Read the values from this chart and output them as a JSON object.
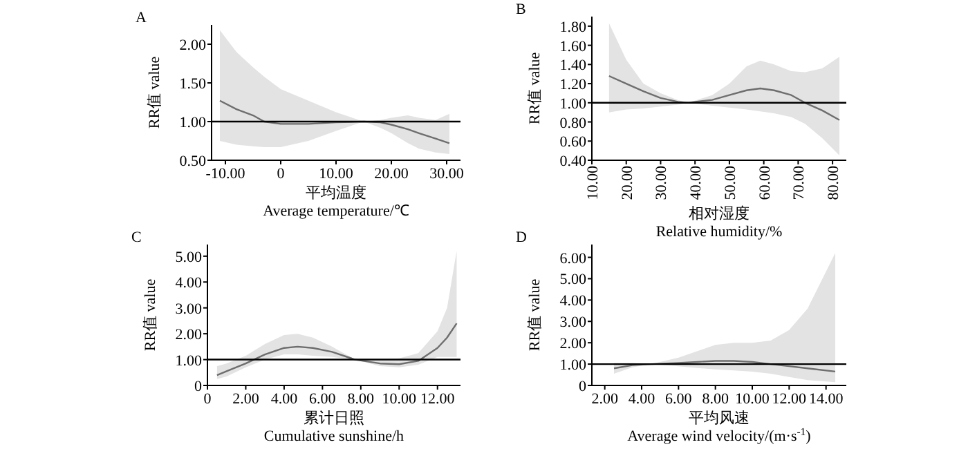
{
  "chart_data": [
    {
      "type": "line",
      "title": "A",
      "xlabel": "平均温度\nAverage temperature/℃",
      "ylabel": "RR值 value",
      "xlim": [
        -12.5,
        32.5
      ],
      "ylim": [
        0.5,
        2.25
      ],
      "xticks": [
        {
          "value": -10,
          "label": "-10.00"
        },
        0,
        {
          "value": 10,
          "label": "10.00"
        },
        {
          "value": 20,
          "label": "20.00"
        },
        {
          "value": 30,
          "label": "30.00"
        }
      ],
      "yticks": [
        {
          "value": 0.5,
          "label": "0.50"
        },
        {
          "value": 1,
          "label": "1.00"
        },
        {
          "value": 1.5,
          "label": "1.50"
        },
        {
          "value": 2,
          "label": "2.00"
        }
      ],
      "ref_lines": [
        {
          "axis": "y",
          "value": 1,
          "color": "#000000"
        }
      ],
      "series": [
        {
          "color": "#6e6e6e",
          "x": [
            -11,
            -8,
            -5,
            -3,
            0,
            5,
            10,
            15,
            18,
            20,
            23,
            25,
            28,
            30.5
          ],
          "values": [
            1.27,
            1.16,
            1.08,
            1.0,
            0.97,
            0.97,
            0.99,
            1.0,
            0.99,
            0.96,
            0.9,
            0.85,
            0.78,
            0.72
          ],
          "lower": [
            0.75,
            0.7,
            0.68,
            0.67,
            0.67,
            0.75,
            0.88,
            1.0,
            0.92,
            0.85,
            0.72,
            0.65,
            0.6,
            0.58
          ],
          "upper": [
            2.18,
            1.9,
            1.7,
            1.58,
            1.42,
            1.27,
            1.12,
            1.0,
            1.02,
            1.05,
            1.08,
            1.05,
            1.02,
            1.1
          ]
        }
      ]
    },
    {
      "type": "line",
      "title": "B",
      "xlabel": "相对湿度\nRelative humidity/%",
      "ylabel": "RR值 value",
      "xlim": [
        10,
        84
      ],
      "ylim": [
        0.4,
        1.9
      ],
      "xticks": [
        {
          "value": 10,
          "label": "10.00"
        },
        {
          "value": 20,
          "label": "20.00"
        },
        {
          "value": 30,
          "label": "30.00"
        },
        {
          "value": 40,
          "label": "40.00"
        },
        {
          "value": 50,
          "label": "50.00"
        },
        {
          "value": 60,
          "label": "60.00"
        },
        {
          "value": 70,
          "label": "70.00"
        },
        {
          "value": 80,
          "label": "80.00"
        }
      ],
      "yticks": [
        {
          "value": 0.4,
          "label": "0.40"
        },
        {
          "value": 0.6,
          "label": "0.60"
        },
        {
          "value": 0.8,
          "label": "0.80"
        },
        {
          "value": 1,
          "label": "1.00"
        },
        {
          "value": 1.2,
          "label": "1.20"
        },
        {
          "value": 1.4,
          "label": "1.40"
        },
        {
          "value": 1.6,
          "label": "1.60"
        },
        {
          "value": 1.8,
          "label": "1.80"
        }
      ],
      "ref_lines": [
        {
          "axis": "y",
          "value": 1,
          "color": "#000000"
        }
      ],
      "series": [
        {
          "color": "#6e6e6e",
          "x": [
            15,
            20,
            25,
            30,
            35,
            38,
            45,
            50,
            55,
            59,
            63,
            68,
            72,
            77,
            82
          ],
          "values": [
            1.28,
            1.2,
            1.12,
            1.05,
            1.01,
            1.0,
            1.03,
            1.08,
            1.13,
            1.15,
            1.13,
            1.08,
            1.0,
            0.92,
            0.82
          ],
          "lower": [
            0.9,
            0.93,
            0.94,
            0.96,
            0.98,
            1.0,
            0.97,
            0.95,
            0.93,
            0.91,
            0.89,
            0.85,
            0.78,
            0.63,
            0.45
          ],
          "upper": [
            1.83,
            1.45,
            1.2,
            1.1,
            1.03,
            1.0,
            1.08,
            1.2,
            1.38,
            1.44,
            1.4,
            1.33,
            1.32,
            1.36,
            1.48
          ]
        }
      ]
    },
    {
      "type": "line",
      "title": "C",
      "xlabel": "累计日照\nCumulative sunshine/h",
      "ylabel": "RR值 value",
      "xlim": [
        0,
        13.2
      ],
      "ylim": [
        0,
        5.45
      ],
      "xticks": [
        0,
        {
          "value": 2,
          "label": "2.00"
        },
        {
          "value": 4,
          "label": "4.00"
        },
        {
          "value": 6,
          "label": "6.00"
        },
        {
          "value": 8,
          "label": "8.00"
        },
        {
          "value": 10,
          "label": "10.00"
        },
        {
          "value": 12,
          "label": "12.00"
        }
      ],
      "yticks": [
        0,
        {
          "value": 1,
          "label": "1.00"
        },
        {
          "value": 2,
          "label": "2.00"
        },
        {
          "value": 3,
          "label": "3.00"
        },
        {
          "value": 4,
          "label": "4.00"
        },
        {
          "value": 5,
          "label": "5.00"
        }
      ],
      "ref_lines": [
        {
          "axis": "y",
          "value": 1,
          "color": "#000000"
        }
      ],
      "series": [
        {
          "color": "#6e6e6e",
          "x": [
            0.5,
            1,
            2,
            3,
            4,
            4.7,
            5.5,
            6.5,
            7.7,
            9,
            10,
            11,
            12,
            12.5,
            13
          ],
          "values": [
            0.4,
            0.55,
            0.85,
            1.2,
            1.45,
            1.5,
            1.45,
            1.3,
            1.0,
            0.85,
            0.82,
            0.95,
            1.45,
            1.85,
            2.4
          ],
          "lower": [
            0.25,
            0.35,
            0.7,
            1.0,
            1.2,
            1.2,
            1.15,
            1.1,
            1.0,
            0.75,
            0.7,
            0.8,
            1.1,
            1.1,
            1.1
          ],
          "upper": [
            0.75,
            0.85,
            1.15,
            1.6,
            1.95,
            2.0,
            1.85,
            1.5,
            1.0,
            1.0,
            1.05,
            1.25,
            2.1,
            3.0,
            5.2
          ]
        }
      ]
    },
    {
      "type": "line",
      "title": "D",
      "xlabel": "平均风速\nAverage wind velocity/(m·s$^{-1}$)",
      "ylabel": "RR值 value",
      "xlim": [
        1.3,
        15.1
      ],
      "ylim": [
        0,
        6.6
      ],
      "xticks": [
        {
          "value": 2,
          "label": "2.00"
        },
        {
          "value": 4,
          "label": "4.00"
        },
        {
          "value": 6,
          "label": "6.00"
        },
        {
          "value": 8,
          "label": "8.00"
        },
        {
          "value": 10,
          "label": "10.00"
        },
        {
          "value": 12,
          "label": "12.00"
        },
        {
          "value": 14,
          "label": "14.00"
        }
      ],
      "yticks": [
        0,
        {
          "value": 1,
          "label": "1.00"
        },
        {
          "value": 2,
          "label": "2.00"
        },
        {
          "value": 3,
          "label": "3.00"
        },
        {
          "value": 4,
          "label": "4.00"
        },
        {
          "value": 5,
          "label": "5.00"
        },
        {
          "value": 6,
          "label": "6.00"
        }
      ],
      "ref_lines": [
        {
          "axis": "y",
          "value": 1,
          "color": "#000000"
        }
      ],
      "series": [
        {
          "color": "#6e6e6e",
          "x": [
            2.5,
            3.5,
            4.5,
            6,
            7,
            8,
            9,
            10,
            11,
            12,
            13,
            14.5
          ],
          "values": [
            0.8,
            0.95,
            1.0,
            1.05,
            1.1,
            1.15,
            1.15,
            1.1,
            1.0,
            0.9,
            0.8,
            0.65
          ],
          "lower": [
            0.55,
            0.85,
            1.0,
            0.9,
            0.82,
            0.75,
            0.7,
            0.65,
            0.55,
            0.4,
            0.25,
            0.15
          ],
          "upper": [
            1.05,
            1.05,
            1.0,
            1.3,
            1.6,
            1.9,
            2.0,
            2.0,
            2.1,
            2.6,
            3.6,
            6.2
          ]
        }
      ]
    }
  ]
}
